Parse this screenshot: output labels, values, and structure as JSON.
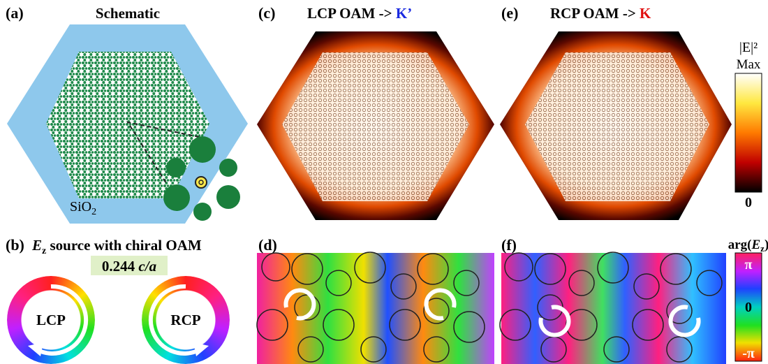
{
  "panels": {
    "a": {
      "label": "(a)",
      "title": "Schematic",
      "substrate": {
        "text": "SiO",
        "sub": "2"
      }
    },
    "b": {
      "label": "(b)",
      "title": {
        "symbol": "E",
        "sub": "z",
        "rest": " source with chiral OAM"
      },
      "frequency": {
        "value": "0.244",
        "unit": "c/a"
      },
      "rings": [
        "LCP",
        "RCP"
      ]
    },
    "c": {
      "label": "(c)",
      "title": "LCP OAM -> ",
      "valley": "K’"
    },
    "d": {
      "label": "(d)"
    },
    "e": {
      "label": "(e)",
      "title": "RCP OAM -> ",
      "valley": "K"
    },
    "f": {
      "label": "(f)"
    }
  },
  "intensity_bar": {
    "title": "|E|²",
    "top": "Max",
    "bottom": "0"
  },
  "phase_bar": {
    "title": {
      "prefix": "arg(",
      "symbol": "E",
      "sub": "z",
      "suffix": ")"
    },
    "top": "π",
    "middle": "0",
    "bottom": "-π"
  }
}
